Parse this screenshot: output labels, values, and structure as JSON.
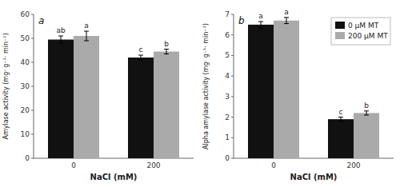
{
  "chart_data": [
    {
      "type": "bar",
      "title": "a",
      "categories": [
        "0",
        "200"
      ],
      "series": [
        {
          "color": "#111111",
          "values": [
            49.5,
            42.0
          ],
          "errors": [
            1.5,
            1.0
          ],
          "letters": [
            "ab",
            "c"
          ]
        },
        {
          "color": "#aaaaaa",
          "values": [
            51.0,
            44.5
          ],
          "errors": [
            2.0,
            1.0
          ],
          "letters": [
            "a",
            "b"
          ]
        }
      ],
      "xlabel": "NaCl (mM)",
      "ylabel": "Amylase activity  (mg· g⁻¹· min⁻¹)",
      "ylim": [
        0,
        60
      ],
      "yticks": [
        0,
        10,
        20,
        30,
        40,
        50,
        60
      ],
      "grid": false
    },
    {
      "type": "bar",
      "title": "b",
      "categories": [
        "0",
        "200"
      ],
      "series": [
        {
          "name": "0 μM MT",
          "color": "#111111",
          "values": [
            6.5,
            1.9
          ],
          "errors": [
            0.15,
            0.1
          ],
          "letters": [
            "a",
            "c"
          ]
        },
        {
          "name": "200 μM MT",
          "color": "#aaaaaa",
          "values": [
            6.7,
            2.2
          ],
          "errors": [
            0.15,
            0.1
          ],
          "letters": [
            "a",
            "b"
          ]
        }
      ],
      "xlabel": "NaCl (mM)",
      "ylabel": "Alpha amylase activity  (mg· g⁻¹· min⁻¹)",
      "ylim": [
        0,
        7
      ],
      "yticks": [
        0,
        1,
        2,
        3,
        4,
        5,
        6,
        7
      ],
      "grid": false,
      "legend": "upper right"
    }
  ]
}
